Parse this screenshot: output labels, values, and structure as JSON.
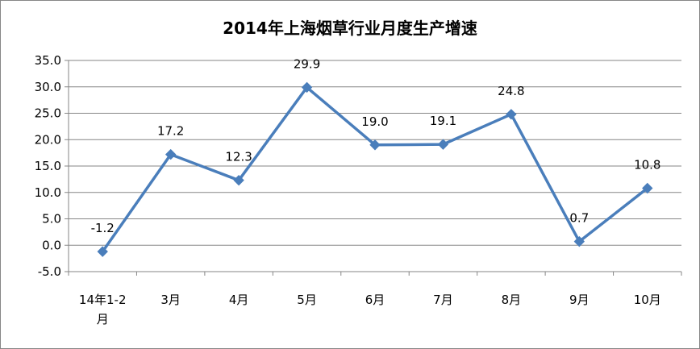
{
  "chart_data": {
    "type": "line",
    "title": "2014年上海烟草行业月度生产增速",
    "categories": [
      "14年1-2月",
      "3月",
      "4月",
      "5月",
      "6月",
      "7月",
      "8月",
      "9月",
      "10月"
    ],
    "category_lines": [
      [
        "14年1-2",
        "月"
      ],
      [
        "3月"
      ],
      [
        "4月"
      ],
      [
        "5月"
      ],
      [
        "6月"
      ],
      [
        "7月"
      ],
      [
        "8月"
      ],
      [
        "9月"
      ],
      [
        "10月"
      ]
    ],
    "values": [
      -1.2,
      17.2,
      12.3,
      29.9,
      19.0,
      19.1,
      24.8,
      0.7,
      10.8
    ],
    "data_labels": [
      "-1.2",
      "17.2",
      "12.3",
      "29.9",
      "19.0",
      "19.1",
      "24.8",
      "0.7",
      "10.8"
    ],
    "ylim": [
      -5,
      35
    ],
    "yticks": [
      "35.0",
      "30.0",
      "25.0",
      "20.0",
      "15.0",
      "10.0",
      "5.0",
      "0.0",
      "-5.0"
    ],
    "ytick_values": [
      35,
      30,
      25,
      20,
      15,
      10,
      5,
      0,
      -5
    ],
    "grid": true,
    "legend": "none",
    "colors": {
      "line": "#4a7ebb",
      "marker": "#4a7ebb",
      "grid": "#868686",
      "axis": "#868686"
    },
    "marker": "diamond"
  }
}
